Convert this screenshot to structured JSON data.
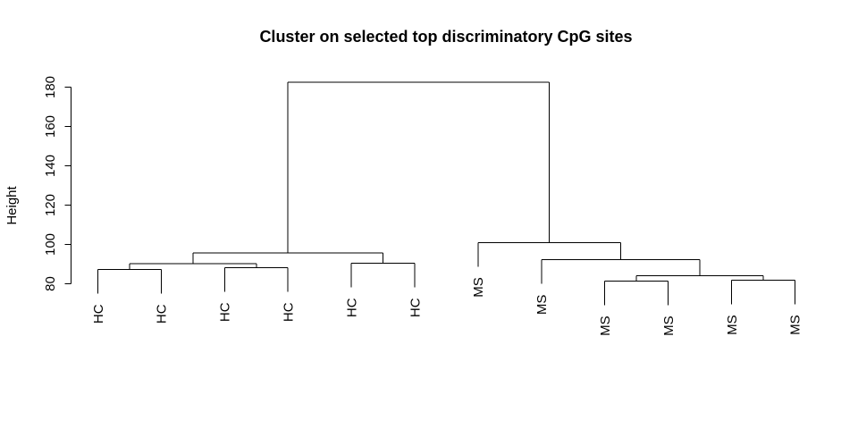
{
  "chart_data": {
    "type": "dendrogram",
    "title": "Cluster on selected top discriminatory CpG sites",
    "xlabel": "",
    "ylabel": "Height",
    "ylim": [
      80,
      185
    ],
    "yticks": [
      80,
      100,
      120,
      140,
      160,
      180
    ],
    "y_tick_labels": [
      "80",
      "100",
      "120",
      "140",
      "160",
      "180"
    ],
    "grid": false,
    "leaves": [
      "HC",
      "HC",
      "HC",
      "HC",
      "HC",
      "HC",
      "MS",
      "MS",
      "MS",
      "MS",
      "MS",
      "MS"
    ],
    "merges": [
      {
        "left": -1,
        "right": -2,
        "height": 87.3
      },
      {
        "left": -3,
        "right": -4,
        "height": 88.2
      },
      {
        "left": 1,
        "right": 2,
        "height": 90.2
      },
      {
        "left": -5,
        "right": -6,
        "height": 90.5
      },
      {
        "left": 3,
        "right": 4,
        "height": 95.7
      },
      {
        "left": -9,
        "right": -10,
        "height": 81.4
      },
      {
        "left": -11,
        "right": -12,
        "height": 81.9
      },
      {
        "left": 6,
        "right": 7,
        "height": 84.2
      },
      {
        "left": -8,
        "right": 8,
        "height": 92.2
      },
      {
        "left": -7,
        "right": 9,
        "height": 101.0
      },
      {
        "left": 5,
        "right": 10,
        "height": 182.6
      }
    ]
  }
}
